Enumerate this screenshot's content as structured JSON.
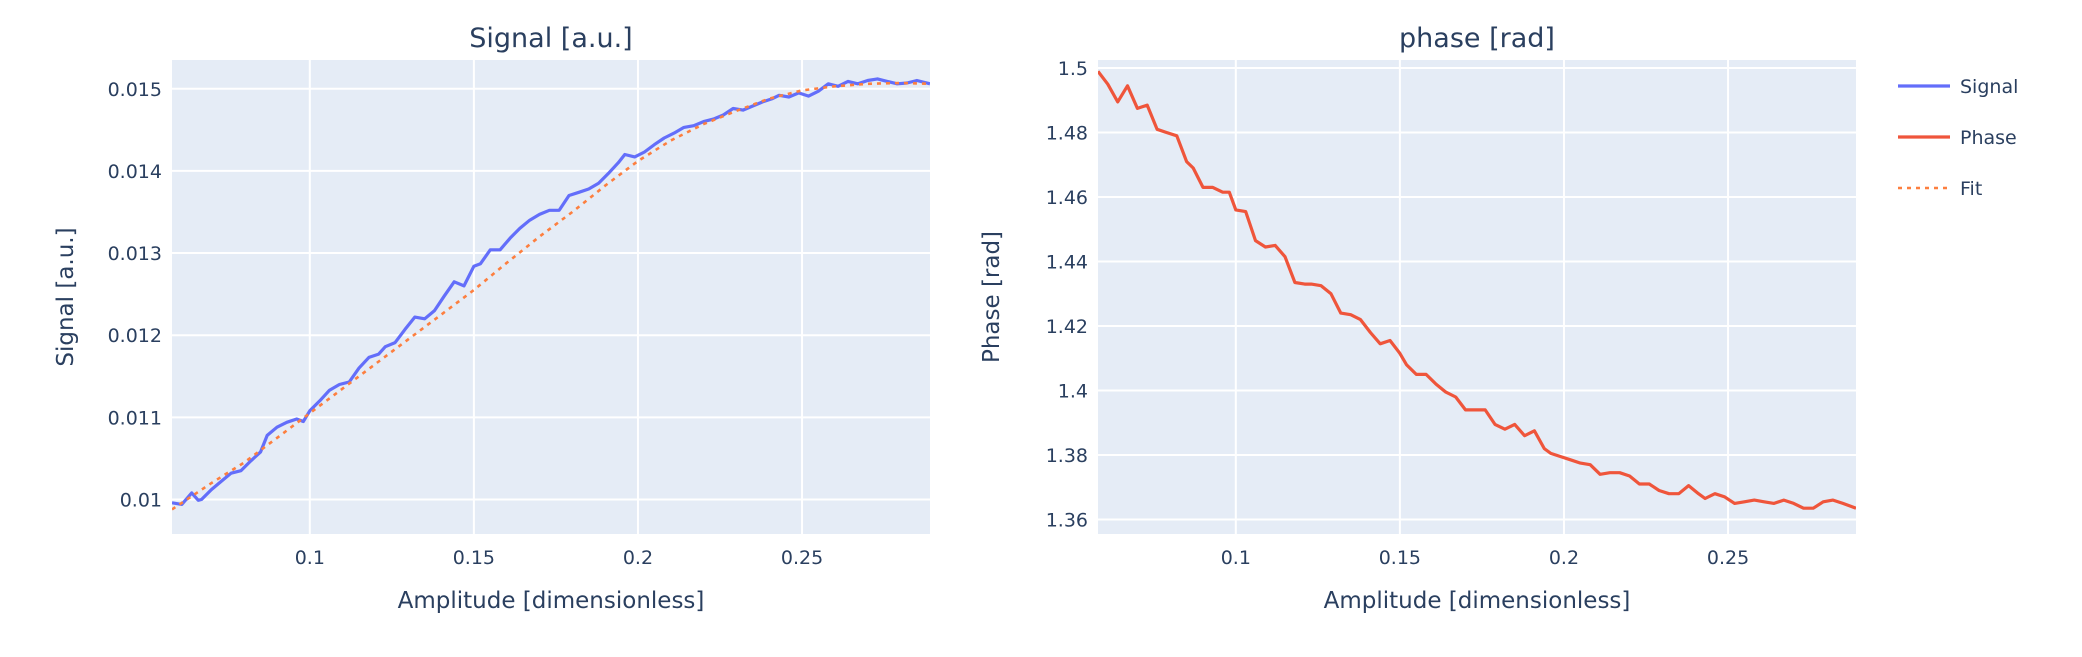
{
  "chart_data": [
    {
      "type": "line",
      "title": "Signal [a.u.]",
      "xlabel": "Amplitude [dimensionless]",
      "ylabel": "Signal [a.u.]",
      "xlim": [
        0.058,
        0.289
      ],
      "ylim": [
        0.00958,
        0.01535
      ],
      "xticks": [
        0.1,
        0.15,
        0.2,
        0.25
      ],
      "xtick_labels": [
        "0.1",
        "0.15",
        "0.2",
        "0.25"
      ],
      "yticks": [
        0.01,
        0.011,
        0.012,
        0.013,
        0.014,
        0.015
      ],
      "ytick_labels": [
        "0.01",
        "0.011",
        "0.012",
        "0.013",
        "0.014",
        "0.015"
      ],
      "grid": true,
      "series": [
        {
          "name": "Signal",
          "color": "#636efa",
          "dash": "solid",
          "x": [
            0.058,
            0.061,
            0.064,
            0.066,
            0.067,
            0.07,
            0.073,
            0.076,
            0.079,
            0.082,
            0.085,
            0.087,
            0.09,
            0.093,
            0.096,
            0.098,
            0.1,
            0.103,
            0.106,
            0.109,
            0.112,
            0.115,
            0.118,
            0.121,
            0.123,
            0.126,
            0.129,
            0.132,
            0.135,
            0.138,
            0.141,
            0.144,
            0.147,
            0.15,
            0.152,
            0.155,
            0.158,
            0.161,
            0.164,
            0.167,
            0.17,
            0.173,
            0.176,
            0.179,
            0.182,
            0.185,
            0.188,
            0.191,
            0.194,
            0.196,
            0.199,
            0.202,
            0.205,
            0.208,
            0.211,
            0.214,
            0.217,
            0.22,
            0.223,
            0.226,
            0.229,
            0.232,
            0.235,
            0.238,
            0.241,
            0.243,
            0.246,
            0.249,
            0.252,
            0.255,
            0.258,
            0.261,
            0.264,
            0.267,
            0.27,
            0.273,
            0.276,
            0.279,
            0.282,
            0.285,
            0.289
          ],
          "y": [
            0.00996,
            0.00994,
            0.01008,
            0.00999,
            0.01,
            0.01012,
            0.01022,
            0.01032,
            0.01035,
            0.01047,
            0.01058,
            0.01078,
            0.01088,
            0.01094,
            0.01098,
            0.01095,
            0.01108,
            0.0112,
            0.01133,
            0.0114,
            0.01143,
            0.0116,
            0.01173,
            0.01177,
            0.01186,
            0.01191,
            0.01207,
            0.01222,
            0.0122,
            0.0123,
            0.01248,
            0.01265,
            0.0126,
            0.01284,
            0.01287,
            0.01304,
            0.01304,
            0.01318,
            0.0133,
            0.0134,
            0.01347,
            0.01352,
            0.01352,
            0.0137,
            0.01374,
            0.01378,
            0.01385,
            0.01397,
            0.0141,
            0.0142,
            0.01417,
            0.01423,
            0.01432,
            0.0144,
            0.01446,
            0.01453,
            0.01455,
            0.0146,
            0.01463,
            0.01468,
            0.01476,
            0.01474,
            0.01479,
            0.01484,
            0.01488,
            0.01492,
            0.0149,
            0.01495,
            0.01491,
            0.01497,
            0.01506,
            0.01503,
            0.01509,
            0.01506,
            0.0151,
            0.01512,
            0.01509,
            0.01506,
            0.01507,
            0.0151,
            0.01506
          ]
        },
        {
          "name": "Fit",
          "color": "#fd7f3f",
          "dash": "dot",
          "x": [
            0.058,
            0.07,
            0.08,
            0.09,
            0.1,
            0.11,
            0.12,
            0.13,
            0.14,
            0.15,
            0.16,
            0.17,
            0.18,
            0.19,
            0.2,
            0.21,
            0.22,
            0.23,
            0.24,
            0.25,
            0.26,
            0.27,
            0.28,
            0.289
          ],
          "y": [
            0.00988,
            0.0102,
            0.01045,
            0.01075,
            0.01105,
            0.01135,
            0.01165,
            0.01195,
            0.01225,
            0.01255,
            0.01288,
            0.0132,
            0.0135,
            0.01382,
            0.01412,
            0.01437,
            0.01457,
            0.01473,
            0.01488,
            0.01498,
            0.01503,
            0.01506,
            0.01507,
            0.01506
          ]
        }
      ]
    },
    {
      "type": "line",
      "title": "phase [rad]",
      "xlabel": "Amplitude [dimensionless]",
      "ylabel": "Phase [rad]",
      "xlim": [
        0.058,
        0.289
      ],
      "ylim": [
        1.3555,
        1.5025
      ],
      "xticks": [
        0.1,
        0.15,
        0.2,
        0.25
      ],
      "xtick_labels": [
        "0.1",
        "0.15",
        "0.2",
        "0.25"
      ],
      "yticks": [
        1.36,
        1.38,
        1.4,
        1.42,
        1.44,
        1.46,
        1.48,
        1.5
      ],
      "ytick_labels": [
        "1.36",
        "1.38",
        "1.4",
        "1.42",
        "1.44",
        "1.46",
        "1.48",
        "1.5"
      ],
      "grid": true,
      "series": [
        {
          "name": "Phase",
          "color": "#ef553b",
          "dash": "solid",
          "x": [
            0.058,
            0.061,
            0.064,
            0.067,
            0.07,
            0.073,
            0.076,
            0.079,
            0.082,
            0.085,
            0.087,
            0.09,
            0.093,
            0.096,
            0.098,
            0.1,
            0.103,
            0.106,
            0.109,
            0.112,
            0.115,
            0.118,
            0.121,
            0.123,
            0.126,
            0.129,
            0.132,
            0.135,
            0.138,
            0.141,
            0.144,
            0.147,
            0.15,
            0.152,
            0.155,
            0.158,
            0.161,
            0.164,
            0.167,
            0.17,
            0.173,
            0.176,
            0.179,
            0.182,
            0.185,
            0.188,
            0.191,
            0.194,
            0.196,
            0.199,
            0.202,
            0.205,
            0.208,
            0.211,
            0.214,
            0.217,
            0.22,
            0.223,
            0.226,
            0.229,
            0.232,
            0.235,
            0.238,
            0.241,
            0.243,
            0.246,
            0.249,
            0.252,
            0.255,
            0.258,
            0.261,
            0.264,
            0.267,
            0.27,
            0.273,
            0.276,
            0.279,
            0.282,
            0.285,
            0.289
          ],
          "y": [
            1.499,
            1.495,
            1.4895,
            1.4945,
            1.4875,
            1.4885,
            1.481,
            1.48,
            1.479,
            1.471,
            1.469,
            1.463,
            1.463,
            1.4615,
            1.4615,
            1.456,
            1.4555,
            1.4465,
            1.4445,
            1.445,
            1.4415,
            1.4335,
            1.433,
            1.433,
            1.4325,
            1.43,
            1.424,
            1.4235,
            1.422,
            1.418,
            1.4145,
            1.4155,
            1.4115,
            1.408,
            1.405,
            1.405,
            1.402,
            1.3995,
            1.398,
            1.394,
            1.394,
            1.394,
            1.3895,
            1.388,
            1.3895,
            1.386,
            1.3875,
            1.382,
            1.3805,
            1.3795,
            1.3785,
            1.3775,
            1.377,
            1.374,
            1.3745,
            1.3745,
            1.3735,
            1.371,
            1.371,
            1.369,
            1.368,
            1.368,
            1.3705,
            1.368,
            1.3665,
            1.368,
            1.367,
            1.365,
            1.3655,
            1.366,
            1.3655,
            1.365,
            1.366,
            1.365,
            1.3635,
            1.3635,
            1.3655,
            1.366,
            1.365,
            1.3635
          ]
        }
      ]
    }
  ],
  "legend": {
    "placement": "right",
    "items": [
      {
        "label": "Signal",
        "color": "#636efa",
        "dash": "solid"
      },
      {
        "label": "Phase",
        "color": "#ef553b",
        "dash": "solid"
      },
      {
        "label": "Fit",
        "color": "#fd7f3f",
        "dash": "dot"
      }
    ]
  }
}
